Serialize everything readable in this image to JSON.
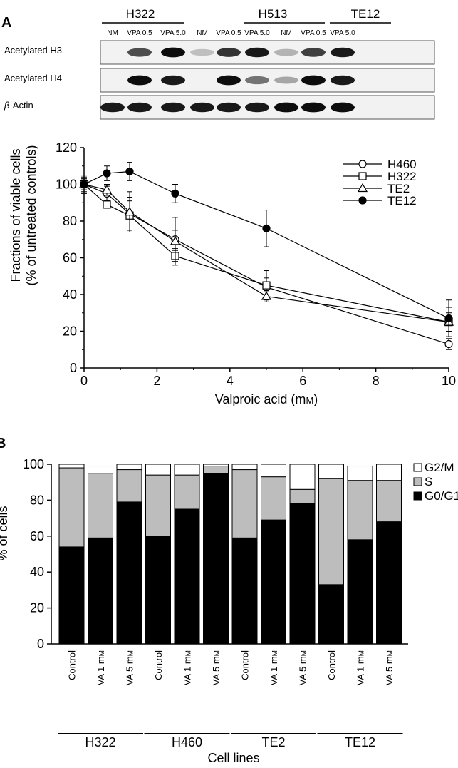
{
  "panel_labels": {
    "a": "A",
    "b": "B"
  },
  "blot": {
    "groups": [
      {
        "name": "H322",
        "lanes": [
          "NM",
          "VPA 0.5",
          "VPA 5.0"
        ]
      },
      {
        "name": "H513",
        "lanes": [
          "NM",
          "VPA 0.5",
          "VPA 5.0"
        ]
      },
      {
        "name": "TE12",
        "lanes": [
          "NM",
          "VPA 0.5",
          "VPA 5.0"
        ]
      }
    ],
    "rows": [
      {
        "label": "Acetylated H3",
        "intensities": [
          0.0,
          0.7,
          0.95,
          0.25,
          0.8,
          0.9,
          0.3,
          0.75,
          0.9
        ]
      },
      {
        "label": "Acetylated H4",
        "intensities": [
          0.0,
          0.95,
          0.9,
          0.0,
          0.95,
          0.55,
          0.35,
          0.95,
          0.9
        ]
      },
      {
        "label_prefix": "β",
        "label_suffix": "-Actin",
        "intensities": [
          0.9,
          0.9,
          0.9,
          0.9,
          0.9,
          0.9,
          0.95,
          0.95,
          0.95
        ]
      }
    ]
  },
  "chart_data": [
    {
      "type": "line",
      "xlabel_main": "Valproic acid (m",
      "xlabel_unit": "M",
      "xlabel_close": ")",
      "ylabel": [
        "Fractions of viable cells",
        "(% of untreated controls)"
      ],
      "xlim": [
        0,
        10
      ],
      "ylim": [
        0,
        120
      ],
      "xticks": [
        0,
        2,
        4,
        6,
        8,
        10
      ],
      "yticks": [
        0,
        20,
        40,
        60,
        80,
        100,
        120
      ],
      "legend_position": "top-right",
      "series": [
        {
          "name": "H460",
          "marker": "circle-open",
          "x": [
            0,
            0.625,
            1.25,
            2.5,
            5,
            10
          ],
          "y": [
            100,
            95,
            84,
            70,
            44,
            13
          ],
          "err": [
            4,
            4,
            9,
            5,
            5,
            3
          ]
        },
        {
          "name": "H322",
          "marker": "square-open",
          "x": [
            0,
            0.625,
            1.25,
            2.5,
            5,
            10
          ],
          "y": [
            100,
            89,
            83,
            61,
            45,
            25
          ],
          "err": [
            3,
            2,
            8,
            3,
            8,
            8
          ]
        },
        {
          "name": "TE2",
          "marker": "triangle-open",
          "x": [
            0,
            0.625,
            1.25,
            2.5,
            5,
            10
          ],
          "y": [
            100,
            97,
            85,
            69,
            39,
            25
          ],
          "err": [
            3,
            3,
            11,
            13,
            3,
            5
          ]
        },
        {
          "name": "TE12",
          "marker": "circle-filled",
          "x": [
            0,
            0.625,
            1.25,
            2.5,
            5,
            10
          ],
          "y": [
            100,
            106,
            107,
            95,
            76,
            27
          ],
          "err": [
            5,
            4,
            5,
            5,
            10,
            10
          ]
        }
      ]
    },
    {
      "type": "bar",
      "stacked": true,
      "ylabel": "% of cells",
      "xlabel": "Cell lines",
      "ylim": [
        0,
        100
      ],
      "yticks": [
        0,
        20,
        40,
        60,
        80,
        100
      ],
      "legend_position": "top-right",
      "categories": [
        "Control",
        "VA 1 mM",
        "VA 5 mM",
        "Control",
        "VA 1 mM",
        "VA 5 mM",
        "Control",
        "VA 1 mM",
        "VA 5 mM",
        "Control",
        "VA 1 mM",
        "VA 5 mM"
      ],
      "category_labels": [
        {
          "prefix": "Control",
          "unit": ""
        },
        {
          "prefix": "VA 1 m",
          "unit": "M"
        },
        {
          "prefix": "VA 5 m",
          "unit": "M"
        },
        {
          "prefix": "Control",
          "unit": ""
        },
        {
          "prefix": "VA 1 m",
          "unit": "M"
        },
        {
          "prefix": "VA 5 m",
          "unit": "M"
        },
        {
          "prefix": "Control",
          "unit": ""
        },
        {
          "prefix": "VA 1 m",
          "unit": "M"
        },
        {
          "prefix": "VA 5 m",
          "unit": "M"
        },
        {
          "prefix": "Control",
          "unit": ""
        },
        {
          "prefix": "VA 1 m",
          "unit": "M"
        },
        {
          "prefix": "VA 5 m",
          "unit": "M"
        }
      ],
      "groups": [
        "H322",
        "H460",
        "TE2",
        "TE12"
      ],
      "series": [
        {
          "name": "G0/G1",
          "color": "#000000",
          "values": [
            54,
            59,
            79,
            60,
            75,
            95,
            59,
            69,
            78,
            33,
            58,
            68
          ]
        },
        {
          "name": "S",
          "color": "#bdbdbd",
          "values": [
            44,
            36,
            18,
            34,
            19,
            4,
            38,
            24,
            8,
            59,
            33,
            23
          ]
        },
        {
          "name": "G2/M",
          "color": "#ffffff",
          "values": [
            2,
            4,
            3,
            6,
            6,
            1,
            3,
            7,
            14,
            8,
            8,
            9
          ]
        }
      ]
    }
  ]
}
